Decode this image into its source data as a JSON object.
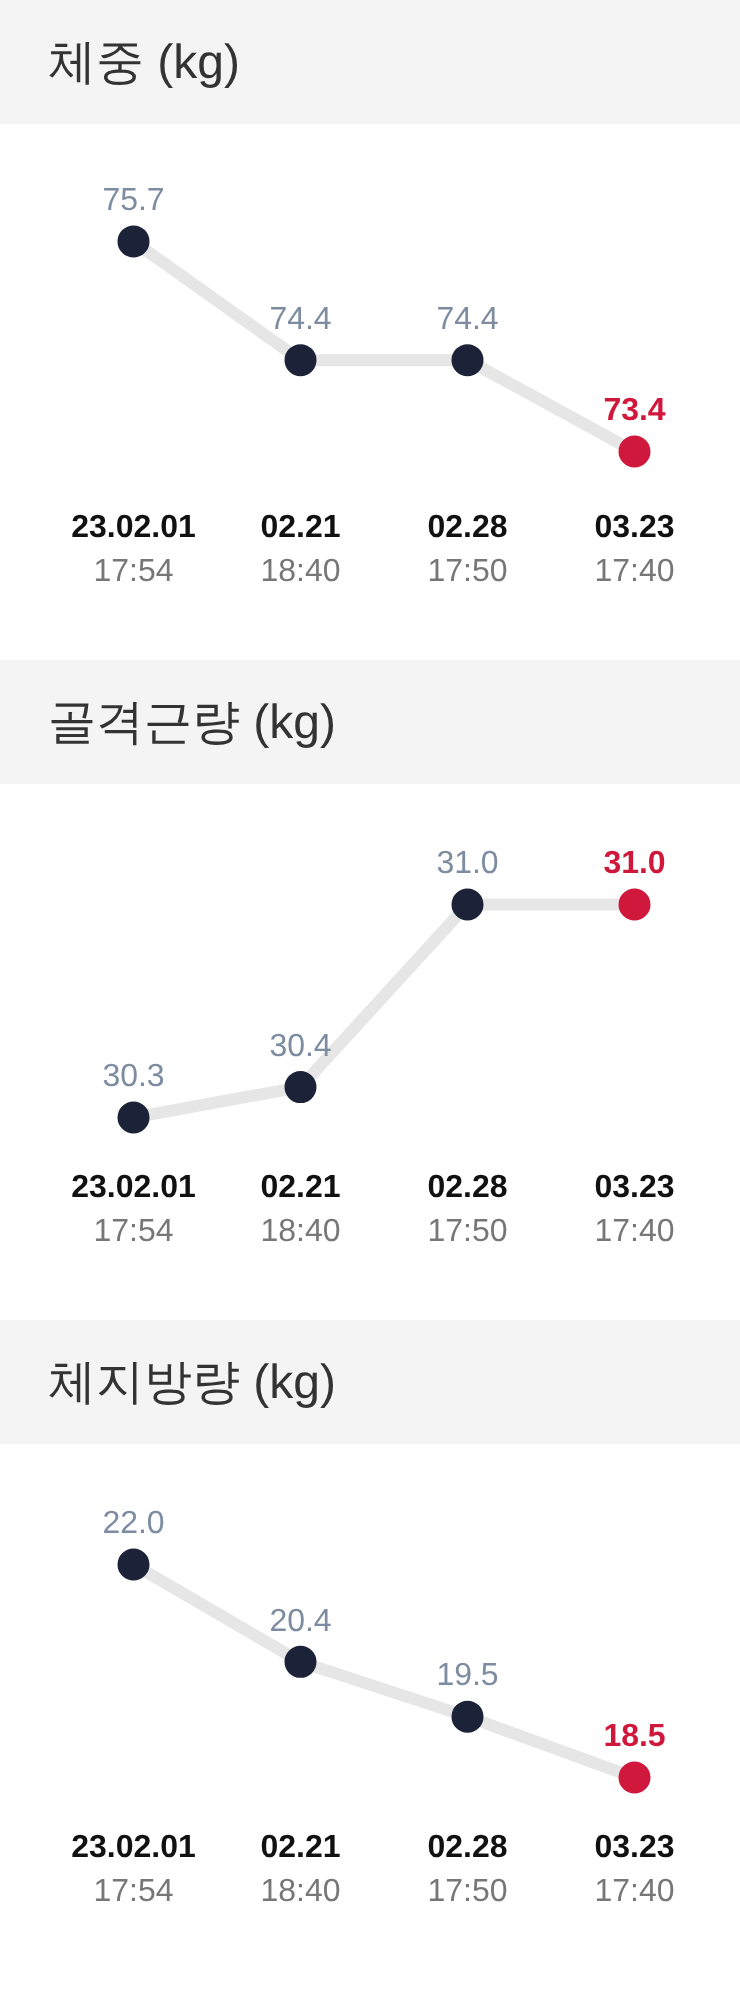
{
  "chart_data": [
    {
      "type": "line",
      "title": "체중 (kg)",
      "categories": [
        "23.02.01 17:54",
        "02.21 18:40",
        "02.28 17:50",
        "03.23 17:40"
      ],
      "marker": "circle",
      "series": [
        {
          "color": "#e6e6e6",
          "colors": [
            "#1c2238",
            "#1c2238",
            "#1c2238",
            "#d0183c"
          ],
          "values": [
            75.7,
            74.4,
            74.4,
            73.4
          ],
          "value_labels": [
            "75.7",
            "74.4",
            "74.4",
            "73.4"
          ]
        }
      ]
    },
    {
      "type": "line",
      "title": "골격근량 (kg)",
      "categories": [
        "23.02.01 17:54",
        "02.21 18:40",
        "02.28 17:50",
        "03.23 17:40"
      ],
      "marker": "circle",
      "series": [
        {
          "color": "#e6e6e6",
          "colors": [
            "#1c2238",
            "#1c2238",
            "#1c2238",
            "#d0183c"
          ],
          "values": [
            30.3,
            30.4,
            31.0,
            31.0
          ],
          "value_labels": [
            "30.3",
            "30.4",
            "31.0",
            "31.0"
          ]
        }
      ]
    },
    {
      "type": "line",
      "title": "체지방량 (kg)",
      "categories": [
        "23.02.01 17:54",
        "02.21 18:40",
        "02.28 17:50",
        "03.23 17:40"
      ],
      "marker": "circle",
      "series": [
        {
          "color": "#e6e6e6",
          "colors": [
            "#1c2238",
            "#1c2238",
            "#1c2238",
            "#d0183c"
          ],
          "values": [
            22.0,
            20.4,
            19.5,
            18.5
          ],
          "value_labels": [
            "22.0",
            "20.4",
            "19.5",
            "18.5"
          ]
        }
      ]
    }
  ]
}
